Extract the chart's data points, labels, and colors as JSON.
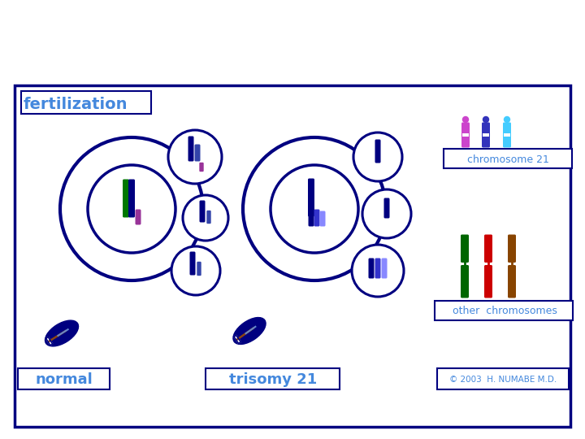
{
  "bg_color": "#ffffff",
  "border_color": "#000080",
  "title": "fertilization",
  "title_color": "#4488DD",
  "label_normal": "normal",
  "label_trisomy": "trisomy 21",
  "label_chr21": "chromosome 21",
  "label_other": "other  chromosomes",
  "copyright": "© 2003  H. NUMABE M.D.",
  "label_color": "#4488DD",
  "cell_border_color": "#000080",
  "sperm_body_color": "#000080",
  "sperm_stripe_brown": "#8B4513",
  "sperm_stripe_blue": "#6688CC",
  "chr21_colors": [
    "#CC44CC",
    "#3333BB",
    "#44CCFF"
  ],
  "other_chr_colors": [
    "#006600",
    "#CC0000",
    "#884400"
  ],
  "normal_egg_chr_colors": [
    "#007700",
    "#000080"
  ],
  "normal_egg_small_chr": "#993399",
  "trisomy_egg_chr_colors": [
    "#000080",
    "#3333CC",
    "#8888FF"
  ],
  "polar_chr_color": "#000080",
  "polar_chr_color2": "#3344AA"
}
